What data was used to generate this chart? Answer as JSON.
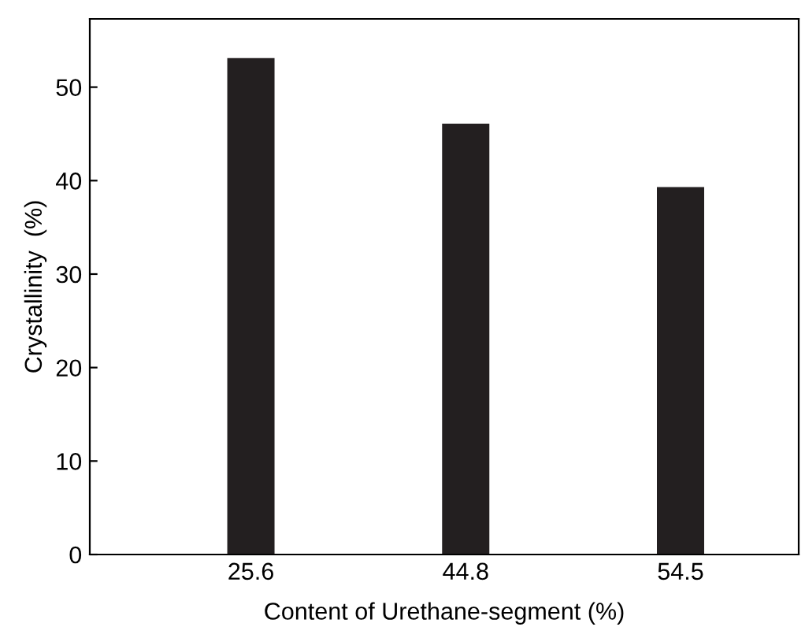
{
  "chart_data": {
    "type": "bar",
    "xlabel": "Content of Urethane-segment (%)",
    "ylabel": "Crystallinity  (%)",
    "categories": [
      "25.6",
      "44.8",
      "54.5"
    ],
    "values": [
      53.1,
      46.1,
      39.3
    ],
    "color": "#231f20",
    "ylim": [
      0,
      57.3
    ],
    "yticks": [
      0,
      10,
      20,
      30,
      40,
      50
    ],
    "grid": false,
    "legend": false
  }
}
